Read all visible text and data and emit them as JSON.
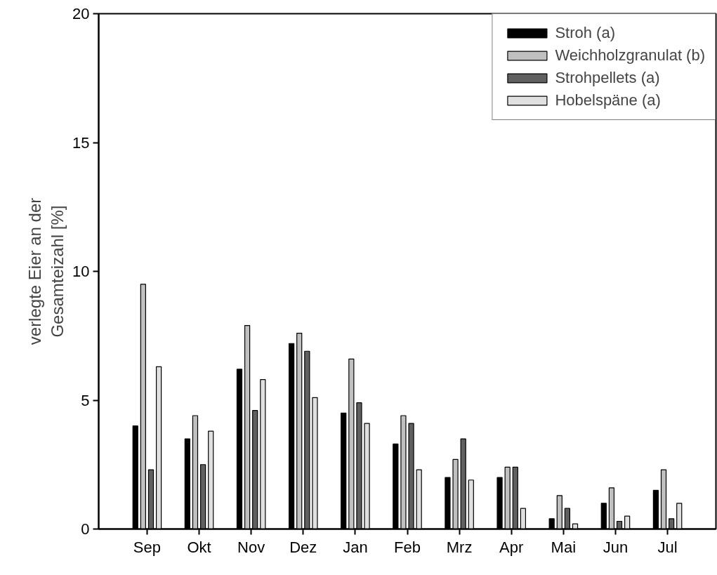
{
  "chart_data": {
    "type": "bar",
    "ylabel": "verlegte Eier an der\nGesamteizahl [%]",
    "categories": [
      "Sep",
      "Okt",
      "Nov",
      "Dez",
      "Jan",
      "Feb",
      "Mrz",
      "Apr",
      "Mai",
      "Jun",
      "Jul"
    ],
    "series": [
      {
        "name": "Stroh (a)",
        "color": "#000000",
        "values": [
          4.0,
          3.5,
          6.2,
          7.2,
          4.5,
          3.3,
          2.0,
          2.0,
          0.4,
          1.0,
          1.5
        ]
      },
      {
        "name": "Weichholzgranulat (b)",
        "color": "#c0c0c0",
        "values": [
          9.5,
          4.4,
          7.9,
          7.6,
          6.6,
          4.4,
          2.7,
          2.4,
          1.3,
          1.6,
          2.3
        ]
      },
      {
        "name": "Strohpellets (a)",
        "color": "#606060",
        "values": [
          2.3,
          2.5,
          4.6,
          6.9,
          4.9,
          4.1,
          3.5,
          2.4,
          0.8,
          0.3,
          0.4
        ]
      },
      {
        "name": "Hobelspäne (a)",
        "color": "#e0e0e0",
        "values": [
          6.3,
          3.8,
          5.8,
          5.1,
          4.1,
          2.3,
          1.9,
          0.8,
          0.2,
          0.5,
          1.0
        ]
      }
    ],
    "ylim": [
      0,
      20
    ],
    "yticks": [
      0,
      5,
      10,
      15,
      20
    ],
    "grid": false,
    "legend": "top right"
  }
}
